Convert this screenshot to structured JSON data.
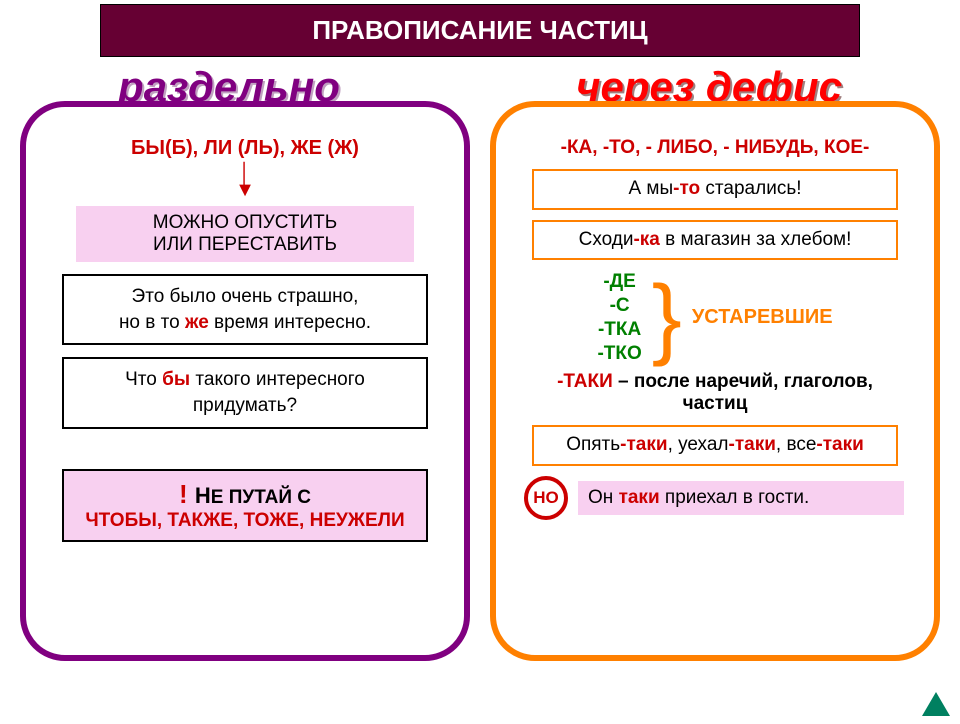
{
  "title": "ПРАВОПИСАНИЕ ЧАСТИЦ",
  "left": {
    "heading": "раздельно",
    "particles": "БЫ(Б), ЛИ (ЛЬ), ЖЕ (Ж)",
    "rule": "МОЖНО ОПУСТИТЬ\nИЛИ ПЕРЕСТАВИТЬ",
    "ex1_a": "Это было очень страшно,",
    "ex1_b1": "но в то ",
    "ex1_hl": "же",
    "ex1_b2": " время интересно.",
    "ex2_a1": "Что ",
    "ex2_hl": "бы",
    "ex2_a2": " такого интересного",
    "ex2_b": "придумать?",
    "warn_pref": "Н",
    "warn_rest": "Е ПУТАЙ С",
    "warn_list": "ЧТОБЫ, ТАКЖЕ, ТОЖЕ, НЕУЖЕЛИ"
  },
  "right": {
    "heading": "через дефис",
    "particles": "-КА, -ТО, - ЛИБО, - НИБУДЬ, КОЕ-",
    "ex1_a": "А мы",
    "ex1_hl": "-то",
    "ex1_b": " старались!",
    "ex2_a": "Сходи",
    "ex2_hl": "-ка",
    "ex2_b": " в магазин за хлебом!",
    "deprecated": "-ДЕ\n-С\n-ТКА\n-ТКО",
    "deprecated_label": "УСТАРЕВШИЕ",
    "taki_rule_a": "-ТАКИ",
    "taki_rule_b": " – после наречий, глаголов,",
    "taki_rule_c": "частиц",
    "ex3_a": "Опять",
    "ex3_h1": "-таки",
    "ex3_b": ", уехал",
    "ex3_h2": "-таки",
    "ex3_c": ", все",
    "ex3_h3": "-таки",
    "but": "НО",
    "ex4_a": "Он ",
    "ex4_hl": "таки",
    "ex4_b": " приехал в гости."
  },
  "colors": {
    "title_bg": "#660033",
    "purple": "#800080",
    "orange": "#ff8000",
    "red": "#cc0000",
    "green": "#008000",
    "pink": "#f8d0f0",
    "nav": "#008060"
  }
}
